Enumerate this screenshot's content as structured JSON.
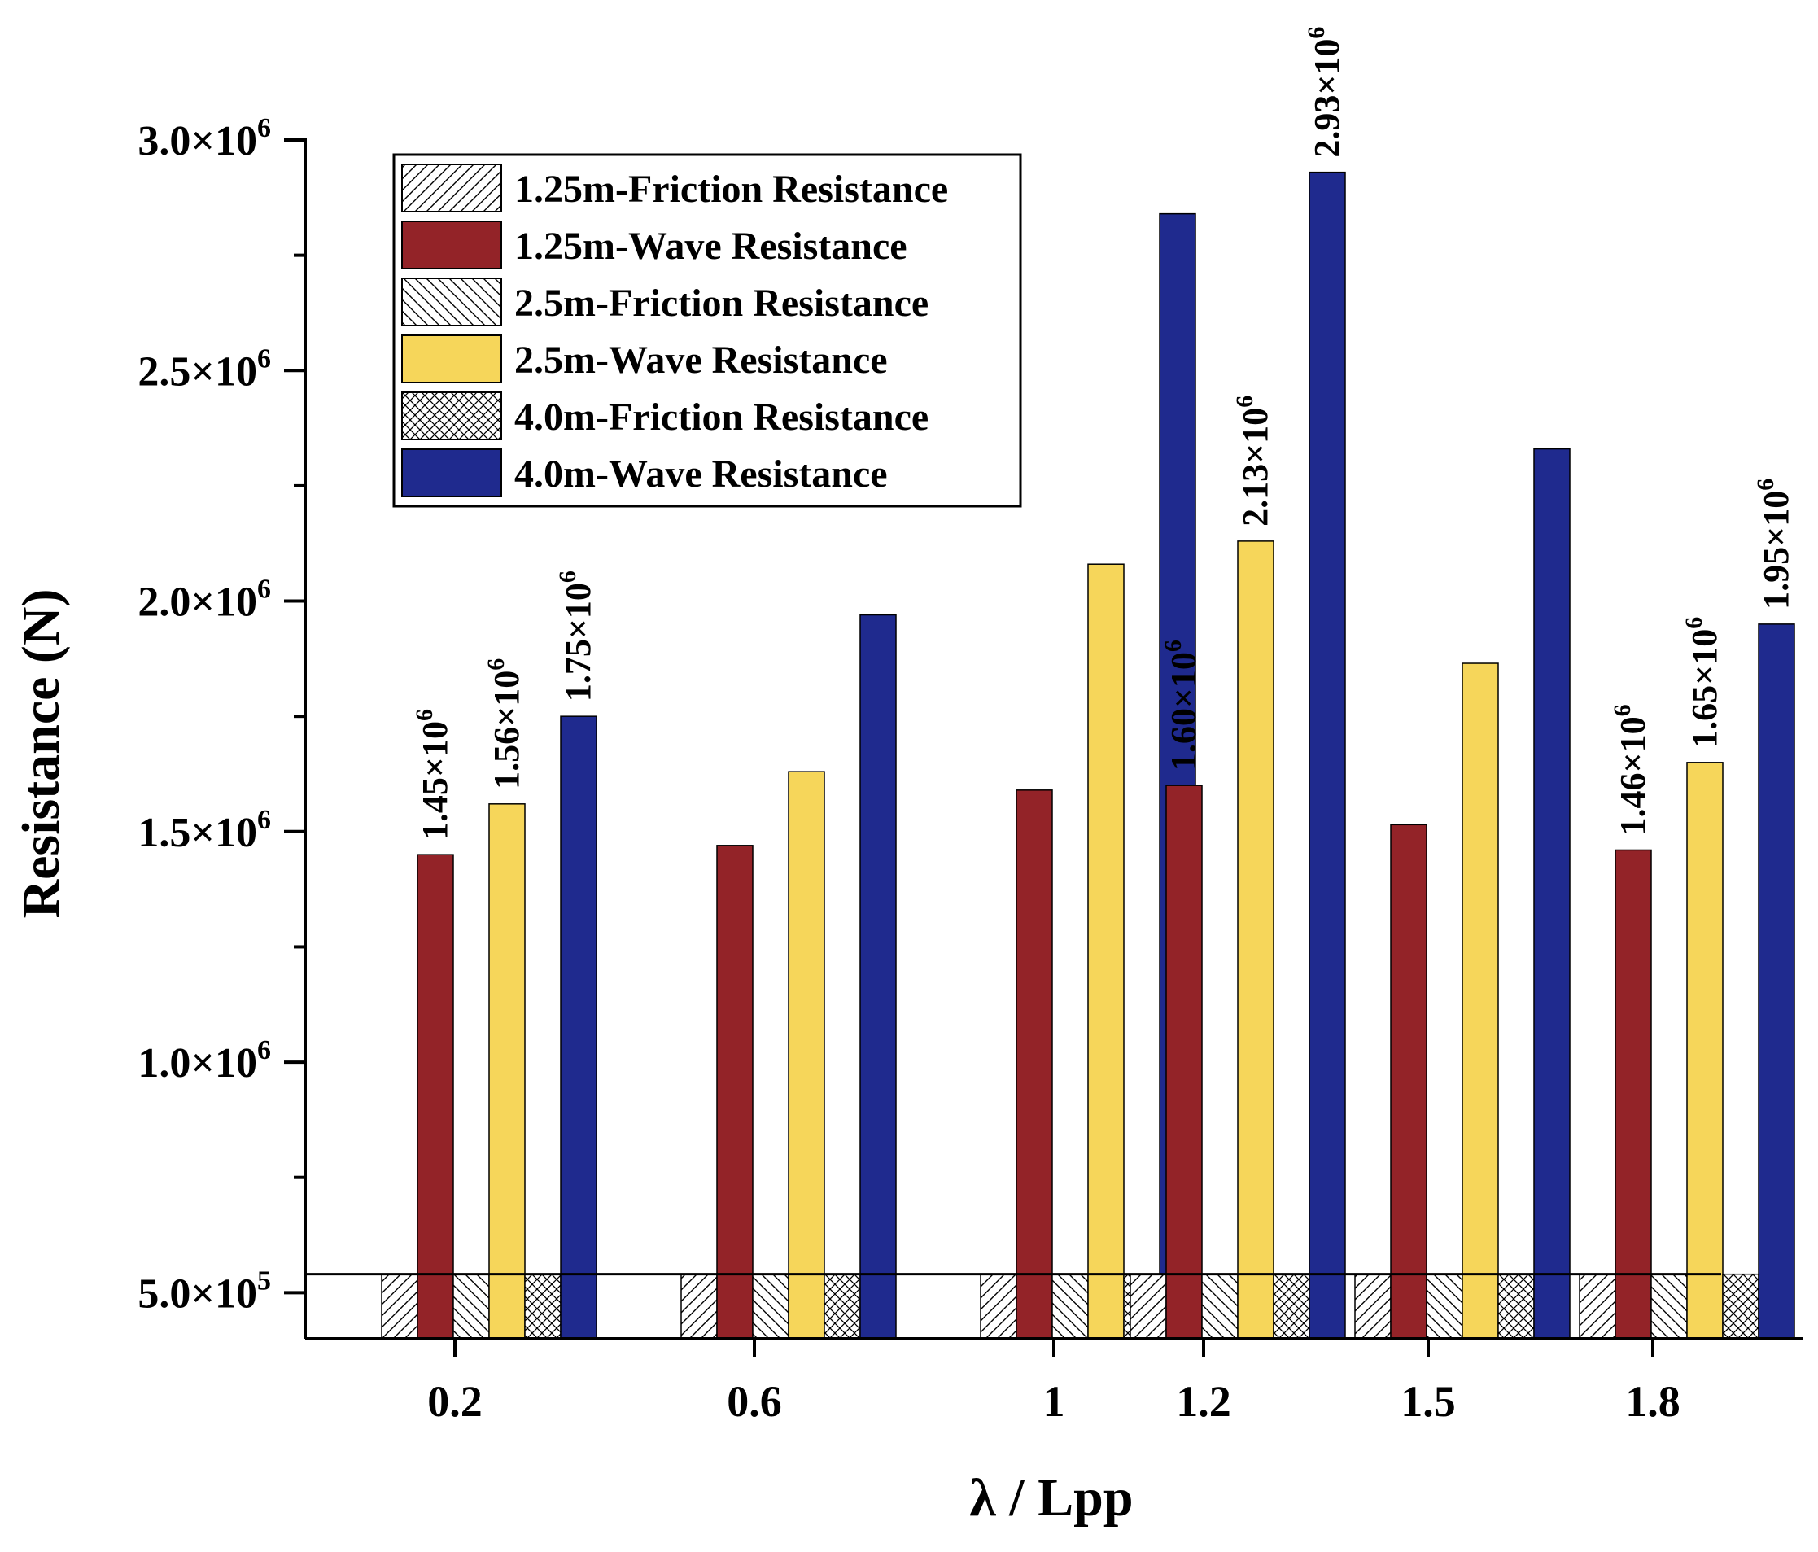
{
  "chart_data": {
    "type": "bar",
    "xlabel": "λ / Lpp",
    "ylabel": "Resistance (N)",
    "ylim": [
      400000,
      3000000
    ],
    "ybreak_below": 540000,
    "yticks": [
      {
        "value": 500000,
        "mantissa": "5.0",
        "exp": "5"
      },
      {
        "value": 1000000,
        "mantissa": "1.0",
        "exp": "6"
      },
      {
        "value": 1500000,
        "mantissa": "1.5",
        "exp": "6"
      },
      {
        "value": 2000000,
        "mantissa": "2.0",
        "exp": "6"
      },
      {
        "value": 2500000,
        "mantissa": "2.5",
        "exp": "6"
      },
      {
        "value": 3000000,
        "mantissa": "3.0",
        "exp": "6"
      }
    ],
    "times_sign": "×10",
    "categories": [
      "0.2",
      "0.6",
      "1",
      "1.2",
      "1.5",
      "1.8"
    ],
    "category_positions": [
      0.2,
      0.6,
      1.0,
      1.2,
      1.5,
      1.8
    ],
    "xlim": [
      0.0,
      2.0
    ],
    "series": [
      {
        "name": "1.25m-Friction Resistance",
        "kind": "friction",
        "pattern": "diag-right",
        "color": "#ffffff",
        "values": [
          540000,
          540000,
          540000,
          540000,
          540000,
          540000
        ]
      },
      {
        "name": "1.25m-Wave Resistance",
        "kind": "wave",
        "color": "#932328",
        "values": [
          1450000,
          1470000,
          1590000,
          1600000,
          1515000,
          1460000
        ]
      },
      {
        "name": "2.5m-Friction Resistance",
        "kind": "friction",
        "pattern": "diag-left",
        "color": "#ffffff",
        "values": [
          540000,
          540000,
          540000,
          540000,
          540000,
          540000
        ]
      },
      {
        "name": "2.5m-Wave Resistance",
        "kind": "wave",
        "color": "#f6d65a",
        "values": [
          1560000,
          1630000,
          2080000,
          2130000,
          1865000,
          1650000
        ]
      },
      {
        "name": "4.0m-Friction Resistance",
        "kind": "friction",
        "pattern": "cross",
        "color": "#ffffff",
        "values": [
          540000,
          540000,
          540000,
          540000,
          540000,
          540000
        ]
      },
      {
        "name": "4.0m-Wave Resistance",
        "kind": "wave",
        "color": "#1f2a8e",
        "values": [
          1750000,
          1970000,
          2840000,
          2930000,
          2330000,
          1950000
        ]
      }
    ],
    "data_labels": [
      {
        "category": "0.2",
        "series": "1.25m-Wave Resistance",
        "mantissa": "1.45",
        "exp": "6"
      },
      {
        "category": "0.2",
        "series": "2.5m-Wave Resistance",
        "mantissa": "1.56",
        "exp": "6"
      },
      {
        "category": "0.2",
        "series": "4.0m-Wave Resistance",
        "mantissa": "1.75",
        "exp": "6"
      },
      {
        "category": "1.2",
        "series": "1.25m-Wave Resistance",
        "mantissa": "1.60",
        "exp": "6"
      },
      {
        "category": "1.2",
        "series": "2.5m-Wave Resistance",
        "mantissa": "2.13",
        "exp": "6"
      },
      {
        "category": "1.2",
        "series": "4.0m-Wave Resistance",
        "mantissa": "2.93",
        "exp": "6"
      },
      {
        "category": "1.8",
        "series": "1.25m-Wave Resistance",
        "mantissa": "1.46",
        "exp": "6"
      },
      {
        "category": "1.8",
        "series": "2.5m-Wave Resistance",
        "mantissa": "1.65",
        "exp": "6"
      },
      {
        "category": "1.8",
        "series": "4.0m-Wave Resistance",
        "mantissa": "1.95",
        "exp": "6"
      }
    ],
    "legend": {
      "placement": "top-left"
    }
  }
}
